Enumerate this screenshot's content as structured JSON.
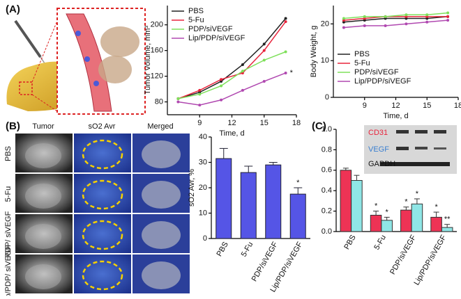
{
  "figure": {
    "panels": [
      "(A)",
      "(B)",
      "(C)"
    ],
    "image_columns": [
      "Tumor",
      "sO2 Avr",
      "Merged"
    ],
    "image_rows": [
      "PBS",
      "5-Fu",
      "PDP/ siVEGF",
      "Lip/PDP/ siVEGF"
    ],
    "blot_extra": "GAPDH"
  },
  "chart_data": [
    {
      "type": "line",
      "xlabel": "Time, d",
      "ylabel": "Tumor Volume, mm³",
      "x": [
        7,
        9,
        11,
        13,
        15,
        17
      ],
      "xlim": [
        6,
        18
      ],
      "xticks": [
        9,
        12,
        15,
        18
      ],
      "ylim": [
        60,
        230
      ],
      "yticks": [
        80,
        120,
        160,
        200
      ],
      "legend": "upper left",
      "series": [
        {
          "name": "PBS",
          "color": "#222222",
          "values": [
            85,
            95,
            112,
            138,
            170,
            210
          ]
        },
        {
          "name": "5-Fu",
          "color": "#e8243c",
          "values": [
            85,
            98,
            115,
            125,
            160,
            205
          ]
        },
        {
          "name": "PDP/siVEGF",
          "color": "#7ee05a",
          "values": [
            85,
            92,
            105,
            128,
            145,
            158
          ]
        },
        {
          "name": "Lip/PDP/siVEGF",
          "color": "#b048b0",
          "values": [
            80,
            75,
            83,
            98,
            112,
            125
          ]
        }
      ],
      "annotations": [
        {
          "text": "*",
          "series": 3,
          "index": 5
        }
      ]
    },
    {
      "type": "line",
      "xlabel": "Time, d",
      "ylabel": "Body Weight, g",
      "x": [
        7,
        9,
        11,
        13,
        15,
        17
      ],
      "xlim": [
        6,
        18
      ],
      "xticks": [
        9,
        12,
        15,
        18
      ],
      "ylim": [
        0,
        25
      ],
      "yticks": [
        0,
        10,
        20
      ],
      "legend": "lower left",
      "series": [
        {
          "name": "PBS",
          "color": "#222222",
          "values": [
            20.5,
            21,
            21.5,
            21.5,
            21.5,
            22
          ]
        },
        {
          "name": "5-Fu",
          "color": "#e8243c",
          "values": [
            21,
            21.5,
            22,
            22,
            22,
            22
          ]
        },
        {
          "name": "PDP/siVEGF",
          "color": "#7ee05a",
          "values": [
            21.5,
            22,
            22,
            22.5,
            22.5,
            23
          ]
        },
        {
          "name": "Lip/PDP/siVEGF",
          "color": "#b048b0",
          "values": [
            19,
            19.5,
            19.5,
            20,
            20.5,
            21
          ]
        }
      ],
      "annotations": []
    },
    {
      "type": "bar",
      "ylabel": "sO2 Avr, %",
      "categories": [
        "PBS",
        "5-Fu",
        "PDP/siVEGF",
        "Lip/PDP/siVEGF"
      ],
      "values": [
        31.5,
        26,
        29,
        17.5
      ],
      "errors": [
        4,
        2.5,
        1,
        2.5
      ],
      "color": "#5555e6",
      "ylim": [
        0,
        40
      ],
      "yticks": [
        0,
        10,
        20,
        30,
        40
      ],
      "annotations": [
        {
          "text": "*",
          "index": 3
        }
      ]
    },
    {
      "type": "grouped_bar",
      "categories": [
        "PBS",
        "5-Fu",
        "PDP/siVEGF",
        "Lip/PDP/siVEGF"
      ],
      "series": [
        {
          "name": "CD31",
          "color": "#ee3355",
          "values": [
            0.6,
            0.16,
            0.21,
            0.14
          ],
          "errors": [
            0.02,
            0.04,
            0.03,
            0.05
          ]
        },
        {
          "name": "VEGF",
          "color": "#8fe6e6",
          "values": [
            0.5,
            0.11,
            0.27,
            0.04
          ],
          "errors": [
            0.05,
            0.03,
            0.05,
            0.03
          ]
        }
      ],
      "ylim": [
        0,
        1.0
      ],
      "yticks": [
        {
          "value": 0,
          "label": "0.0"
        },
        0.2,
        0.4,
        0.6,
        0.8,
        {
          "value": 1,
          "label": "1.0"
        }
      ],
      "annotations": [
        {
          "text": "*",
          "series": 0,
          "index": 1
        },
        {
          "text": "*",
          "series": 1,
          "index": 1
        },
        {
          "text": "*",
          "series": 0,
          "index": 2
        },
        {
          "text": "*",
          "series": 1,
          "index": 2
        },
        {
          "text": "*",
          "series": 0,
          "index": 3
        },
        {
          "text": "**",
          "series": 1,
          "index": 3
        }
      ]
    }
  ]
}
